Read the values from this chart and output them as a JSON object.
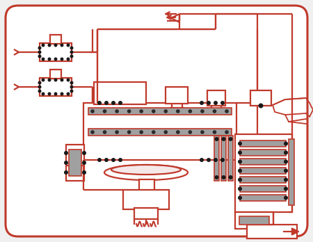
{
  "lc": "#c0392b",
  "gc": "#a0a0a0",
  "bc": "#1a1a1a",
  "white": "#ffffff",
  "bg": "#f0f0f0",
  "cream": "#f5e8e8"
}
